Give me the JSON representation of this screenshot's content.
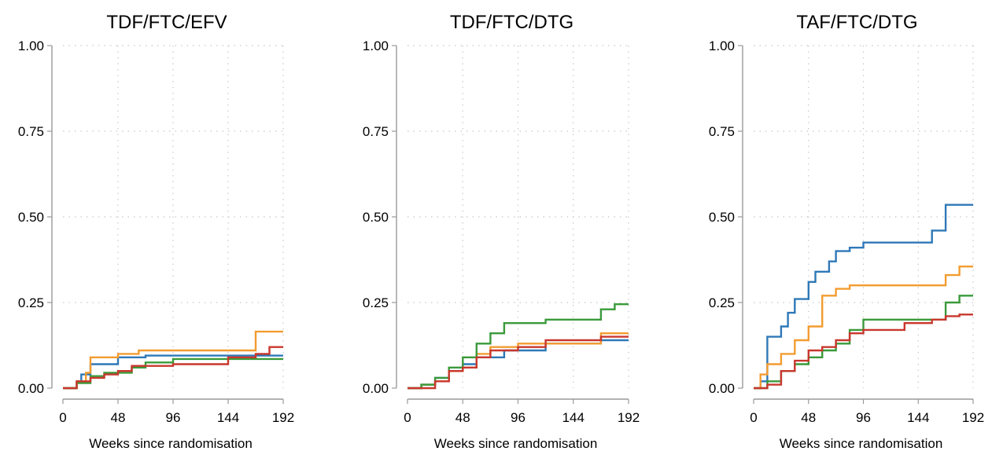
{
  "chart_data": [
    {
      "type": "line",
      "step": true,
      "title": "TDF/FTC/EFV",
      "xlabel": "Weeks since randomisation",
      "ylabel": "",
      "xlim": [
        0,
        192
      ],
      "ylim": [
        0,
        1
      ],
      "xticks": [
        "0",
        "48",
        "96",
        "144",
        "192"
      ],
      "yticks": [
        "0.00",
        "0.25",
        "0.50",
        "0.75",
        "1.00"
      ],
      "grid": true,
      "series": [
        {
          "color": "#2e78b7",
          "x": [
            0,
            12,
            12,
            16,
            16,
            24,
            24,
            48,
            48,
            72,
            72,
            192
          ],
          "y": [
            0,
            0,
            0.02,
            0.02,
            0.04,
            0.04,
            0.07,
            0.07,
            0.09,
            0.09,
            0.095,
            0.095
          ]
        },
        {
          "color": "#f39c30",
          "x": [
            0,
            12,
            12,
            20,
            20,
            24,
            24,
            48,
            48,
            66,
            66,
            168,
            168,
            192
          ],
          "y": [
            0,
            0,
            0.02,
            0.02,
            0.045,
            0.045,
            0.09,
            0.09,
            0.1,
            0.1,
            0.11,
            0.11,
            0.165,
            0.165
          ]
        },
        {
          "color": "#3a9a3a",
          "x": [
            0,
            12,
            12,
            24,
            24,
            36,
            36,
            60,
            60,
            72,
            72,
            96,
            96,
            192
          ],
          "y": [
            0,
            0,
            0.015,
            0.015,
            0.035,
            0.035,
            0.045,
            0.045,
            0.06,
            0.06,
            0.075,
            0.075,
            0.085,
            0.085
          ]
        },
        {
          "color": "#c8372d",
          "x": [
            0,
            12,
            12,
            24,
            24,
            36,
            36,
            48,
            48,
            60,
            60,
            96,
            96,
            144,
            144,
            168,
            168,
            180,
            180,
            192
          ],
          "y": [
            0,
            0,
            0.02,
            0.02,
            0.03,
            0.03,
            0.04,
            0.04,
            0.05,
            0.05,
            0.065,
            0.065,
            0.07,
            0.07,
            0.09,
            0.09,
            0.1,
            0.1,
            0.12,
            0.12
          ]
        }
      ]
    },
    {
      "type": "line",
      "step": true,
      "title": "TDF/FTC/DTG",
      "xlabel": "Weeks since randomisation",
      "ylabel": "",
      "xlim": [
        0,
        192
      ],
      "ylim": [
        0,
        1
      ],
      "xticks": [
        "0",
        "48",
        "96",
        "144",
        "192"
      ],
      "yticks": [
        "0.00",
        "0.25",
        "0.50",
        "0.75",
        "1.00"
      ],
      "grid": true,
      "series": [
        {
          "color": "#2e78b7",
          "x": [
            0,
            12,
            12,
            24,
            24,
            36,
            36,
            48,
            48,
            60,
            60,
            84,
            84,
            120,
            120,
            168,
            168,
            192
          ],
          "y": [
            0,
            0,
            0.01,
            0.01,
            0.03,
            0.03,
            0.05,
            0.05,
            0.07,
            0.07,
            0.09,
            0.09,
            0.11,
            0.11,
            0.13,
            0.13,
            0.14,
            0.14
          ]
        },
        {
          "color": "#f39c30",
          "x": [
            0,
            12,
            12,
            24,
            24,
            36,
            36,
            48,
            48,
            60,
            60,
            72,
            72,
            96,
            96,
            168,
            168,
            192
          ],
          "y": [
            0,
            0,
            0.01,
            0.01,
            0.02,
            0.02,
            0.05,
            0.05,
            0.06,
            0.06,
            0.1,
            0.1,
            0.12,
            0.12,
            0.13,
            0.13,
            0.16,
            0.16
          ]
        },
        {
          "color": "#3a9a3a",
          "x": [
            0,
            12,
            12,
            24,
            24,
            36,
            36,
            48,
            48,
            60,
            60,
            72,
            72,
            84,
            84,
            120,
            120,
            168,
            168,
            180,
            180,
            192
          ],
          "y": [
            0,
            0,
            0.01,
            0.01,
            0.03,
            0.03,
            0.06,
            0.06,
            0.09,
            0.09,
            0.13,
            0.13,
            0.16,
            0.16,
            0.19,
            0.19,
            0.2,
            0.2,
            0.23,
            0.23,
            0.245,
            0.245
          ]
        },
        {
          "color": "#c8372d",
          "x": [
            0,
            24,
            24,
            36,
            36,
            48,
            48,
            60,
            60,
            72,
            72,
            96,
            96,
            120,
            120,
            168,
            168,
            192
          ],
          "y": [
            0,
            0,
            0.02,
            0.02,
            0.05,
            0.05,
            0.06,
            0.06,
            0.09,
            0.09,
            0.11,
            0.11,
            0.12,
            0.12,
            0.14,
            0.14,
            0.15,
            0.15
          ]
        }
      ]
    },
    {
      "type": "line",
      "step": true,
      "title": "TAF/FTC/DTG",
      "xlabel": "Weeks since randomisation",
      "ylabel": "",
      "xlim": [
        0,
        192
      ],
      "ylim": [
        0,
        1
      ],
      "xticks": [
        "0",
        "48",
        "96",
        "144",
        "192"
      ],
      "yticks": [
        "0.00",
        "0.25",
        "0.50",
        "0.75",
        "1.00"
      ],
      "grid": true,
      "series": [
        {
          "color": "#2e78b7",
          "x": [
            0,
            6,
            6,
            12,
            12,
            24,
            24,
            30,
            30,
            36,
            36,
            48,
            48,
            54,
            54,
            66,
            66,
            72,
            72,
            84,
            84,
            96,
            96,
            156,
            156,
            168,
            168,
            192
          ],
          "y": [
            0,
            0,
            0.02,
            0.02,
            0.15,
            0.15,
            0.18,
            0.18,
            0.22,
            0.22,
            0.26,
            0.26,
            0.31,
            0.31,
            0.34,
            0.34,
            0.37,
            0.37,
            0.4,
            0.4,
            0.41,
            0.41,
            0.425,
            0.425,
            0.46,
            0.46,
            0.535,
            0.535
          ]
        },
        {
          "color": "#f39c30",
          "x": [
            0,
            6,
            6,
            12,
            12,
            24,
            24,
            36,
            36,
            48,
            48,
            60,
            60,
            72,
            72,
            84,
            84,
            168,
            168,
            180,
            180,
            192
          ],
          "y": [
            0,
            0,
            0.04,
            0.04,
            0.07,
            0.07,
            0.1,
            0.1,
            0.14,
            0.14,
            0.18,
            0.18,
            0.27,
            0.27,
            0.29,
            0.29,
            0.3,
            0.3,
            0.33,
            0.33,
            0.355,
            0.355
          ]
        },
        {
          "color": "#3a9a3a",
          "x": [
            0,
            12,
            12,
            24,
            24,
            36,
            36,
            48,
            48,
            60,
            60,
            72,
            72,
            84,
            84,
            96,
            96,
            168,
            168,
            180,
            180,
            192
          ],
          "y": [
            0,
            0,
            0.02,
            0.02,
            0.05,
            0.05,
            0.07,
            0.07,
            0.09,
            0.09,
            0.11,
            0.11,
            0.13,
            0.13,
            0.17,
            0.17,
            0.2,
            0.2,
            0.25,
            0.25,
            0.27,
            0.27
          ]
        },
        {
          "color": "#c8372d",
          "x": [
            0,
            12,
            12,
            24,
            24,
            36,
            36,
            48,
            48,
            60,
            60,
            72,
            72,
            84,
            84,
            96,
            96,
            132,
            132,
            156,
            156,
            168,
            168,
            180,
            180,
            192
          ],
          "y": [
            0,
            0,
            0.01,
            0.01,
            0.05,
            0.05,
            0.08,
            0.08,
            0.11,
            0.11,
            0.12,
            0.12,
            0.14,
            0.14,
            0.16,
            0.16,
            0.17,
            0.17,
            0.19,
            0.19,
            0.2,
            0.2,
            0.21,
            0.21,
            0.215,
            0.215
          ]
        }
      ]
    }
  ]
}
